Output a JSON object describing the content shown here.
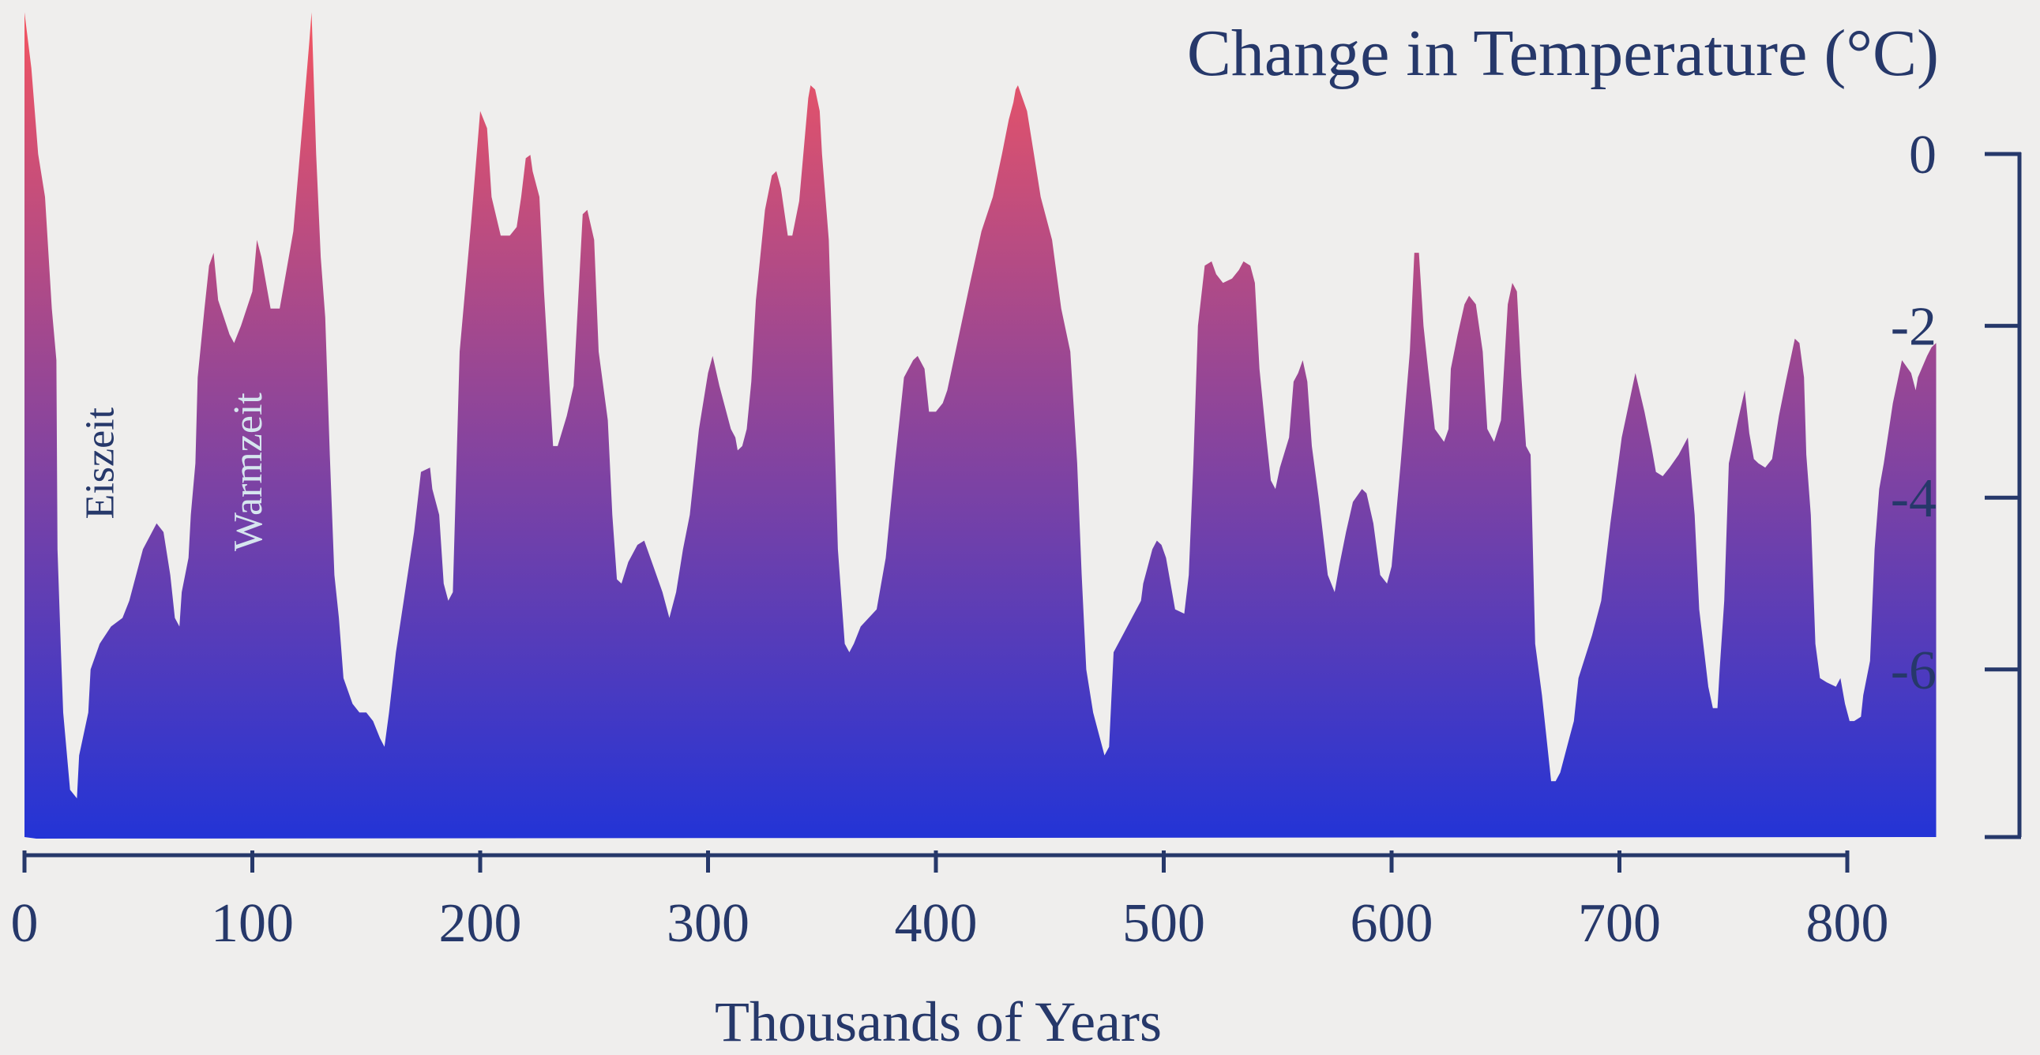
{
  "chart_data": {
    "type": "area",
    "title": "Change in Temperature (°C)",
    "xlabel": "Thousands of Years",
    "ylabel": "",
    "xlim": [
      0,
      800
    ],
    "ylim": [
      -8,
      0
    ],
    "x_ticks": [
      0,
      100,
      200,
      300,
      400,
      500,
      600,
      700,
      800
    ],
    "y_ticks": [
      0,
      -2,
      -4,
      -6
    ],
    "y_tick_labels": [
      "0",
      "-2",
      "-4",
      "-6"
    ],
    "y_axis_position": "right",
    "grid": false,
    "colors": {
      "gradient_top": "#f35561",
      "gradient_bottom": "#2334d6",
      "axis": "#26386a",
      "text": "#26386a",
      "annotation_light": "#d6e6ef"
    },
    "annotations": [
      {
        "text": "Eiszeit",
        "x": 39,
        "y": -3.6
      },
      {
        "text": "Warmzeit",
        "x": 104,
        "y": -3.7
      }
    ],
    "series": [
      {
        "values": [
          [
            0,
            1.65
          ],
          [
            3,
            1.0
          ],
          [
            6,
            0.0
          ],
          [
            9,
            -0.5
          ],
          [
            12,
            -1.8
          ],
          [
            14,
            -2.4
          ],
          [
            14.5,
            -4.6
          ],
          [
            16,
            -5.8
          ],
          [
            17,
            -6.5
          ],
          [
            20,
            -7.4
          ],
          [
            23,
            -7.5
          ],
          [
            24,
            -7.0
          ],
          [
            28,
            -6.5
          ],
          [
            29,
            -6.0
          ],
          [
            33,
            -5.7
          ],
          [
            38,
            -5.5
          ],
          [
            43,
            -5.4
          ],
          [
            46,
            -5.2
          ],
          [
            52,
            -4.6
          ],
          [
            58,
            -4.3
          ],
          [
            61,
            -4.4
          ],
          [
            64,
            -4.9
          ],
          [
            66,
            -5.4
          ],
          [
            68,
            -5.5
          ],
          [
            69,
            -5.1
          ],
          [
            72,
            -4.7
          ],
          [
            73,
            -4.2
          ],
          [
            75,
            -3.6
          ],
          [
            76,
            -2.6
          ],
          [
            79,
            -1.8
          ],
          [
            81,
            -1.3
          ],
          [
            83,
            -1.15
          ],
          [
            85,
            -1.7
          ],
          [
            90,
            -2.1
          ],
          [
            92,
            -2.2
          ],
          [
            95,
            -2.0
          ],
          [
            100,
            -1.6
          ],
          [
            102,
            -1.0
          ],
          [
            104,
            -1.2
          ],
          [
            108,
            -1.8
          ],
          [
            112,
            -1.8
          ],
          [
            114,
            -1.5
          ],
          [
            118,
            -0.9
          ],
          [
            122,
            0.35
          ],
          [
            125,
            1.3
          ],
          [
            126,
            1.65
          ],
          [
            128,
            0.0
          ],
          [
            130,
            -1.2
          ],
          [
            132,
            -1.9
          ],
          [
            134,
            -3.5
          ],
          [
            136,
            -4.9
          ],
          [
            138,
            -5.4
          ],
          [
            140,
            -6.1
          ],
          [
            144,
            -6.4
          ],
          [
            147,
            -6.5
          ],
          [
            150,
            -6.5
          ],
          [
            153,
            -6.6
          ],
          [
            156,
            -6.8
          ],
          [
            158,
            -6.9
          ],
          [
            160,
            -6.5
          ],
          [
            163,
            -5.8
          ],
          [
            167,
            -5.1
          ],
          [
            171,
            -4.4
          ],
          [
            174,
            -3.7
          ],
          [
            178,
            -3.65
          ],
          [
            179,
            -3.9
          ],
          [
            182,
            -4.2
          ],
          [
            184,
            -5.0
          ],
          [
            186,
            -5.2
          ],
          [
            188,
            -5.1
          ],
          [
            191,
            -2.3
          ],
          [
            196,
            -0.8
          ],
          [
            200,
            0.5
          ],
          [
            203,
            0.3
          ],
          [
            205,
            -0.5
          ],
          [
            209,
            -0.95
          ],
          [
            213,
            -0.95
          ],
          [
            216,
            -0.85
          ],
          [
            218,
            -0.5
          ],
          [
            220,
            -0.05
          ],
          [
            222,
            -0.01
          ],
          [
            223,
            -0.2
          ],
          [
            226,
            -0.5
          ],
          [
            228,
            -1.6
          ],
          [
            232,
            -3.4
          ],
          [
            234,
            -3.4
          ],
          [
            238,
            -3.05
          ],
          [
            241,
            -2.7
          ],
          [
            245,
            -0.7
          ],
          [
            247,
            -0.65
          ],
          [
            250,
            -1.0
          ],
          [
            252,
            -2.3
          ],
          [
            256,
            -3.1
          ],
          [
            258,
            -4.2
          ],
          [
            260,
            -4.95
          ],
          [
            262,
            -5.0
          ],
          [
            265,
            -4.75
          ],
          [
            269,
            -4.55
          ],
          [
            272,
            -4.5
          ],
          [
            276,
            -4.8
          ],
          [
            280,
            -5.1
          ],
          [
            283,
            -5.4
          ],
          [
            286,
            -5.1
          ],
          [
            289,
            -4.6
          ],
          [
            292,
            -4.2
          ],
          [
            296,
            -3.2
          ],
          [
            300,
            -2.55
          ],
          [
            302,
            -2.35
          ],
          [
            305,
            -2.7
          ],
          [
            310,
            -3.2
          ],
          [
            312,
            -3.3
          ],
          [
            313,
            -3.45
          ],
          [
            315,
            -3.4
          ],
          [
            317,
            -3.2
          ],
          [
            319,
            -2.65
          ],
          [
            321,
            -1.7
          ],
          [
            325,
            -0.65
          ],
          [
            328,
            -0.25
          ],
          [
            330,
            -0.2
          ],
          [
            332,
            -0.4
          ],
          [
            335,
            -0.95
          ],
          [
            337,
            -0.95
          ],
          [
            340,
            -0.55
          ],
          [
            344,
            0.65
          ],
          [
            345,
            0.8
          ],
          [
            347,
            0.75
          ],
          [
            349,
            0.5
          ],
          [
            350,
            0.0
          ],
          [
            353,
            -1.0
          ],
          [
            357,
            -4.6
          ],
          [
            360,
            -5.7
          ],
          [
            362,
            -5.8
          ],
          [
            364,
            -5.7
          ],
          [
            367,
            -5.5
          ],
          [
            374,
            -5.3
          ],
          [
            378,
            -4.7
          ],
          [
            382,
            -3.6
          ],
          [
            386,
            -2.6
          ],
          [
            390,
            -2.4
          ],
          [
            392,
            -2.35
          ],
          [
            395,
            -2.5
          ],
          [
            397,
            -3.0
          ],
          [
            400,
            -3.0
          ],
          [
            403,
            -2.9
          ],
          [
            405,
            -2.75
          ],
          [
            407,
            -2.5
          ],
          [
            415,
            -1.5
          ],
          [
            420,
            -0.9
          ],
          [
            425,
            -0.5
          ],
          [
            429,
            0.0
          ],
          [
            432,
            0.4
          ],
          [
            434,
            0.6
          ],
          [
            435,
            0.75
          ],
          [
            436,
            0.8
          ],
          [
            440,
            0.5
          ],
          [
            443,
            0.0
          ],
          [
            446,
            -0.5
          ],
          [
            451,
            -1.0
          ],
          [
            455,
            -1.8
          ],
          [
            459,
            -2.3
          ],
          [
            462,
            -3.6
          ],
          [
            464,
            -4.9
          ],
          [
            466,
            -6.0
          ],
          [
            469,
            -6.5
          ],
          [
            472,
            -6.8
          ],
          [
            474,
            -7.0
          ],
          [
            476,
            -6.9
          ],
          [
            478,
            -5.8
          ],
          [
            482,
            -5.6
          ],
          [
            486,
            -5.4
          ],
          [
            490,
            -5.2
          ],
          [
            491,
            -5.0
          ],
          [
            495,
            -4.6
          ],
          [
            497,
            -4.5
          ],
          [
            499,
            -4.55
          ],
          [
            501,
            -4.7
          ],
          [
            505,
            -5.3
          ],
          [
            509,
            -5.35
          ],
          [
            511,
            -4.9
          ],
          [
            513,
            -3.6
          ],
          [
            515,
            -2.0
          ],
          [
            518,
            -1.3
          ],
          [
            521,
            -1.25
          ],
          [
            523,
            -1.4
          ],
          [
            526,
            -1.5
          ],
          [
            530,
            -1.45
          ],
          [
            533,
            -1.35
          ],
          [
            535,
            -1.25
          ],
          [
            538,
            -1.3
          ],
          [
            540,
            -1.5
          ],
          [
            542,
            -2.5
          ],
          [
            545,
            -3.3
          ],
          [
            547,
            -3.8
          ],
          [
            549,
            -3.9
          ],
          [
            551,
            -3.65
          ],
          [
            555,
            -3.3
          ],
          [
            557,
            -2.65
          ],
          [
            559,
            -2.55
          ],
          [
            561,
            -2.4
          ],
          [
            563,
            -2.65
          ],
          [
            565,
            -3.4
          ],
          [
            568,
            -4.0
          ],
          [
            572,
            -4.9
          ],
          [
            575,
            -5.1
          ],
          [
            577,
            -4.8
          ],
          [
            580,
            -4.4
          ],
          [
            583,
            -4.05
          ],
          [
            587,
            -3.9
          ],
          [
            589,
            -3.95
          ],
          [
            592,
            -4.3
          ],
          [
            595,
            -4.9
          ],
          [
            598,
            -5.0
          ],
          [
            600,
            -4.8
          ],
          [
            604,
            -3.6
          ],
          [
            608,
            -2.3
          ],
          [
            610,
            -1.15
          ],
          [
            612,
            -1.15
          ],
          [
            614,
            -2.0
          ],
          [
            616,
            -2.5
          ],
          [
            619,
            -3.2
          ],
          [
            623,
            -3.35
          ],
          [
            625,
            -3.2
          ],
          [
            626,
            -2.5
          ],
          [
            629,
            -2.1
          ],
          [
            632,
            -1.75
          ],
          [
            634,
            -1.65
          ],
          [
            637,
            -1.75
          ],
          [
            640,
            -2.3
          ],
          [
            642,
            -3.2
          ],
          [
            645,
            -3.35
          ],
          [
            648,
            -3.1
          ],
          [
            651,
            -1.75
          ],
          [
            653,
            -1.5
          ],
          [
            655,
            -1.6
          ],
          [
            657,
            -2.6
          ],
          [
            659,
            -3.4
          ],
          [
            661,
            -3.5
          ],
          [
            663,
            -5.7
          ],
          [
            666,
            -6.3
          ],
          [
            668,
            -6.8
          ],
          [
            670,
            -7.3
          ],
          [
            672,
            -7.3
          ],
          [
            674,
            -7.2
          ],
          [
            678,
            -6.8
          ],
          [
            680,
            -6.6
          ],
          [
            682,
            -6.1
          ],
          [
            688,
            -5.6
          ],
          [
            692,
            -5.2
          ],
          [
            696,
            -4.3
          ],
          [
            701,
            -3.3
          ],
          [
            707,
            -2.55
          ],
          [
            711,
            -3.0
          ],
          [
            714,
            -3.4
          ],
          [
            716,
            -3.7
          ],
          [
            719,
            -3.75
          ],
          [
            722,
            -3.65
          ],
          [
            726,
            -3.5
          ],
          [
            728,
            -3.4
          ],
          [
            730,
            -3.3
          ],
          [
            733,
            -4.2
          ],
          [
            735,
            -5.3
          ],
          [
            739,
            -6.2
          ],
          [
            741,
            -6.45
          ],
          [
            743,
            -6.45
          ],
          [
            744,
            -6.0
          ],
          [
            746,
            -5.2
          ],
          [
            748,
            -3.6
          ],
          [
            752,
            -3.1
          ],
          [
            755,
            -2.75
          ],
          [
            757,
            -3.25
          ],
          [
            759,
            -3.55
          ],
          [
            761,
            -3.6
          ],
          [
            764,
            -3.65
          ],
          [
            767,
            -3.55
          ],
          [
            770,
            -3.05
          ],
          [
            773,
            -2.65
          ],
          [
            777,
            -2.15
          ],
          [
            779,
            -2.2
          ],
          [
            781,
            -2.6
          ],
          [
            782,
            -3.5
          ],
          [
            784,
            -4.2
          ],
          [
            786,
            -5.7
          ],
          [
            788,
            -6.1
          ],
          [
            791,
            -6.15
          ],
          [
            795,
            -6.2
          ],
          [
            797,
            -6.1
          ],
          [
            799,
            -6.4
          ],
          [
            801,
            -6.6
          ],
          [
            803,
            -6.6
          ],
          [
            806,
            -6.55
          ],
          [
            807,
            -6.3
          ],
          [
            810,
            -5.9
          ],
          [
            812,
            -4.6
          ],
          [
            814,
            -3.9
          ],
          [
            816,
            -3.6
          ],
          [
            820,
            -2.9
          ],
          [
            824,
            -2.4
          ],
          [
            828,
            -2.55
          ],
          [
            830,
            -2.75
          ],
          [
            831,
            -2.6
          ],
          [
            835,
            -2.35
          ],
          [
            837,
            -2.25
          ],
          [
            839,
            -2.2
          ]
        ]
      }
    ]
  }
}
